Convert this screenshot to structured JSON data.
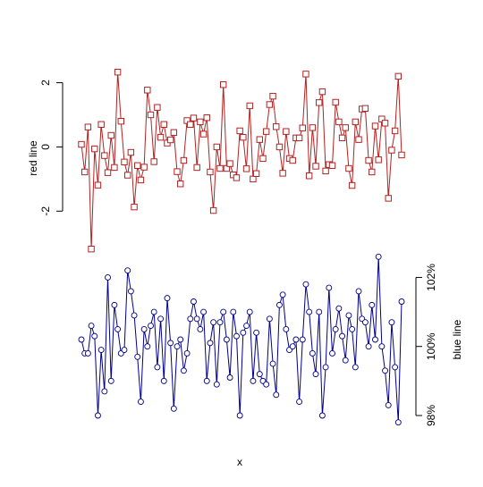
{
  "chart_data": [
    {
      "type": "line",
      "ylabel": "red line",
      "xlabel": "x",
      "ylim": [
        -3.3,
        2.6
      ],
      "yticks": [
        -2,
        0,
        2
      ],
      "ytick_labels": [
        "-2",
        "0",
        "2"
      ],
      "axis_side": "left",
      "color": "#b22222",
      "marker": "square",
      "series": [
        {
          "values": [
            0.08,
            -0.78,
            0.62,
            -3.18,
            -0.06,
            -1.19,
            0.7,
            -0.27,
            -0.8,
            0.36,
            -0.64,
            2.33,
            0.8,
            -0.47,
            -0.88,
            -0.17,
            -1.87,
            -0.58,
            -1.03,
            -0.63,
            1.77,
            1.0,
            -0.46,
            1.23,
            0.3,
            0.7,
            0.12,
            0.22,
            0.45,
            -0.77,
            -1.15,
            -0.42,
            0.82,
            0.7,
            0.9,
            -0.64,
            0.78,
            0.4,
            0.91,
            -0.78,
            -1.98,
            0.0,
            -0.67,
            1.94,
            -0.67,
            -0.52,
            -0.87,
            -0.96,
            0.5,
            0.3,
            -0.68,
            1.28,
            -1.0,
            -0.83,
            0.23,
            -0.36,
            0.48,
            1.32,
            1.58,
            0.63,
            0.0,
            -0.82,
            0.48,
            -0.36,
            -0.42,
            0.28,
            0.28,
            0.59,
            2.27,
            -0.9,
            0.6,
            -0.6,
            1.38,
            1.72,
            -0.75,
            -0.55,
            -0.58,
            1.39,
            0.78,
            0.28,
            0.6,
            -0.67,
            -1.2,
            0.78,
            0.23,
            1.18,
            1.2,
            -0.42,
            -0.78,
            0.65,
            -0.4,
            0.87,
            0.74,
            -1.6,
            -0.1,
            0.5,
            2.2,
            -0.25
          ]
        }
      ]
    },
    {
      "type": "line",
      "ylabel": "blue line",
      "xlabel": "x",
      "ylim": [
        98.0,
        102.4
      ],
      "yticks": [
        98,
        100,
        102
      ],
      "ytick_labels": [
        "98%",
        "100%",
        "102%"
      ],
      "axis_side": "right",
      "color": "#00008b",
      "marker": "circle",
      "series": [
        {
          "values": [
            100.2,
            99.8,
            99.8,
            100.6,
            100.3,
            98.0,
            99.9,
            98.7,
            102.0,
            99.0,
            101.2,
            100.5,
            99.8,
            99.9,
            102.2,
            101.6,
            100.9,
            99.7,
            98.4,
            100.5,
            100.0,
            100.6,
            101.0,
            99.4,
            100.8,
            99.0,
            101.4,
            100.1,
            98.2,
            100.0,
            100.2,
            99.3,
            99.8,
            100.8,
            101.3,
            100.8,
            100.5,
            101.0,
            99.0,
            100.1,
            100.7,
            98.9,
            100.7,
            101.0,
            100.2,
            99.1,
            101.0,
            100.3,
            98.0,
            100.4,
            100.6,
            101.0,
            99.0,
            100.4,
            99.2,
            99.0,
            98.9,
            100.8,
            99.5,
            98.6,
            101.2,
            101.5,
            100.5,
            99.9,
            100.0,
            100.2,
            98.4,
            100.2,
            101.8,
            101.0,
            99.8,
            99.2,
            101.0,
            98.0,
            99.4,
            101.7,
            99.8,
            100.5,
            101.1,
            100.3,
            99.6,
            100.9,
            100.5,
            99.4,
            101.6,
            100.8,
            100.7,
            100.0,
            101.2,
            100.2,
            102.6,
            100.0,
            99.3,
            98.3,
            100.7,
            99.4,
            97.8,
            101.3
          ]
        }
      ]
    }
  ]
}
